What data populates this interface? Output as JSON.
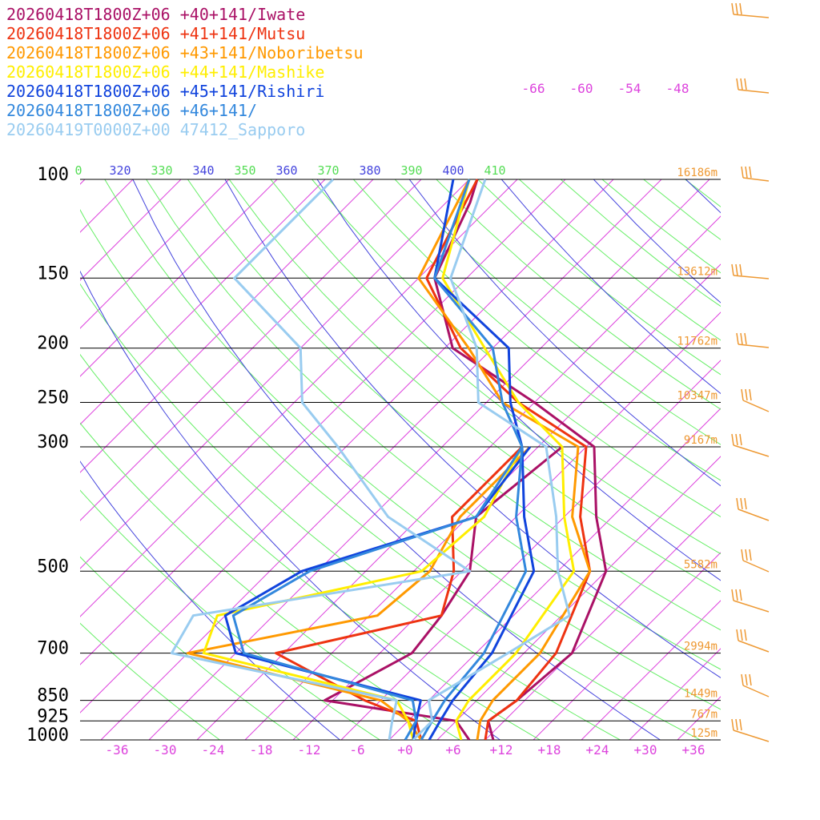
{
  "chart_data": {
    "type": "line",
    "title": "",
    "xlabel": "",
    "ylabel": "",
    "x_ticks": [
      "-36",
      "-30",
      "-24",
      "-18",
      "-12",
      "-6",
      "+0",
      "+6",
      "+12",
      "+18",
      "+24",
      "+30",
      "+36"
    ],
    "pressure_levels": [
      100,
      150,
      200,
      250,
      300,
      500,
      700,
      850,
      925,
      1000
    ],
    "height_labels": [
      {
        "p": 100,
        "label": "16186m"
      },
      {
        "p": 150,
        "label": "13612m"
      },
      {
        "p": 200,
        "label": "11762m"
      },
      {
        "p": 250,
        "label": "10347m"
      },
      {
        "p": 300,
        "label": "9167m"
      },
      {
        "p": 500,
        "label": "5582m"
      },
      {
        "p": 700,
        "label": "2994m"
      },
      {
        "p": 850,
        "label": "1449m"
      },
      {
        "p": 925,
        "label": "767m"
      },
      {
        "p": 1000,
        "label": "125m"
      }
    ],
    "theta_labels": [
      "0",
      "320",
      "330",
      "340",
      "350",
      "360",
      "370",
      "380",
      "390",
      "400",
      "410"
    ],
    "upper_temp_labels": [
      "-66",
      "-60",
      "-54",
      "-48"
    ],
    "series": [
      {
        "name": "20260418T1800Z+06 +40+141/Iwate",
        "color": "#aa1166",
        "temperature": [
          [
            1000,
            11
          ],
          [
            925,
            8
          ],
          [
            850,
            9
          ],
          [
            700,
            10
          ],
          [
            500,
            4
          ],
          [
            400,
            -4
          ],
          [
            300,
            -13
          ],
          [
            250,
            -26
          ],
          [
            200,
            -43
          ],
          [
            150,
            -54
          ],
          [
            110,
            -59
          ],
          [
            100,
            -61
          ]
        ],
        "dewpoint": [
          [
            1000,
            8
          ],
          [
            925,
            4
          ],
          [
            850,
            -15
          ],
          [
            700,
            -10
          ],
          [
            600,
            -11
          ],
          [
            500,
            -13
          ],
          [
            400,
            -19
          ],
          [
            300,
            -17
          ]
        ]
      },
      {
        "name": "20260418T1800Z+06 +41+141/Mutsu",
        "color": "#ee3311",
        "temperature": [
          [
            1000,
            10
          ],
          [
            925,
            8
          ],
          [
            850,
            9
          ],
          [
            700,
            8
          ],
          [
            500,
            2
          ],
          [
            400,
            -6
          ],
          [
            300,
            -14
          ],
          [
            250,
            -28
          ],
          [
            200,
            -42
          ],
          [
            150,
            -55
          ],
          [
            100,
            -61
          ]
        ],
        "dewpoint": [
          [
            1000,
            2
          ],
          [
            925,
            -1
          ],
          [
            850,
            -10
          ],
          [
            700,
            -27
          ],
          [
            600,
            -11
          ],
          [
            500,
            -15
          ],
          [
            400,
            -22
          ],
          [
            300,
            -22
          ]
        ]
      },
      {
        "name": "20260418T1800Z+06 +43+141/Noboribetsu",
        "color": "#ff9900",
        "temperature": [
          [
            1000,
            9
          ],
          [
            925,
            7
          ],
          [
            850,
            6
          ],
          [
            700,
            6
          ],
          [
            500,
            2
          ],
          [
            400,
            -7
          ],
          [
            300,
            -15
          ],
          [
            250,
            -30
          ],
          [
            200,
            -41
          ],
          [
            150,
            -56
          ],
          [
            100,
            -62
          ]
        ],
        "dewpoint": [
          [
            1000,
            2
          ],
          [
            925,
            -2
          ],
          [
            850,
            -8
          ],
          [
            700,
            -38
          ],
          [
            600,
            -19
          ],
          [
            500,
            -18
          ],
          [
            400,
            -21
          ],
          [
            300,
            -21
          ]
        ]
      },
      {
        "name": "20260418T1800Z+06 +44+141/Mashike",
        "color": "#ffee00",
        "temperature": [
          [
            1000,
            7
          ],
          [
            925,
            4
          ],
          [
            850,
            3
          ],
          [
            700,
            3
          ],
          [
            500,
            0
          ],
          [
            400,
            -8
          ],
          [
            300,
            -17
          ],
          [
            250,
            -28
          ],
          [
            200,
            -39
          ],
          [
            150,
            -53
          ],
          [
            100,
            -62
          ]
        ],
        "dewpoint": [
          [
            1000,
            1
          ],
          [
            925,
            -2
          ],
          [
            850,
            -6
          ],
          [
            700,
            -36
          ],
          [
            600,
            -39
          ],
          [
            500,
            -19
          ],
          [
            400,
            -18
          ],
          [
            300,
            -22
          ]
        ]
      },
      {
        "name": "20260418T1800Z+06 +45+141/Rishiri",
        "color": "#1144dd",
        "temperature": [
          [
            1000,
            3
          ],
          [
            925,
            2
          ],
          [
            850,
            1
          ],
          [
            700,
            0
          ],
          [
            500,
            -5
          ],
          [
            400,
            -13
          ],
          [
            300,
            -22
          ],
          [
            250,
            -29
          ],
          [
            200,
            -36
          ],
          [
            150,
            -54
          ],
          [
            100,
            -64
          ]
        ],
        "dewpoint": [
          [
            1000,
            1
          ],
          [
            925,
            -1
          ],
          [
            850,
            -3
          ],
          [
            700,
            -32
          ],
          [
            600,
            -38
          ],
          [
            500,
            -34
          ],
          [
            400,
            -19
          ],
          [
            300,
            -21
          ]
        ]
      },
      {
        "name": "20260418T1800Z+06 +46+141/",
        "color": "#3388dd",
        "temperature": [
          [
            1000,
            2
          ],
          [
            925,
            1
          ],
          [
            850,
            0
          ],
          [
            700,
            -1
          ],
          [
            500,
            -6
          ],
          [
            400,
            -14
          ],
          [
            300,
            -22
          ],
          [
            250,
            -30
          ],
          [
            200,
            -38
          ],
          [
            150,
            -54
          ],
          [
            100,
            -62
          ]
        ],
        "dewpoint": [
          [
            1000,
            0
          ],
          [
            925,
            -1
          ],
          [
            850,
            -4
          ],
          [
            700,
            -31
          ],
          [
            600,
            -37
          ],
          [
            500,
            -33
          ],
          [
            400,
            -19
          ],
          [
            300,
            -22
          ]
        ]
      },
      {
        "name": "20260419T0000Z+00 47412_Sapporo",
        "color": "#99ccf0",
        "temperature": [
          [
            1000,
            1
          ],
          [
            925,
            1
          ],
          [
            850,
            -2
          ],
          [
            700,
            2
          ],
          [
            600,
            5
          ],
          [
            500,
            -2
          ],
          [
            400,
            -9
          ],
          [
            300,
            -19
          ],
          [
            250,
            -33
          ],
          [
            200,
            -40
          ],
          [
            150,
            -52
          ],
          [
            100,
            -60
          ]
        ],
        "dewpoint": [
          [
            1000,
            -2
          ],
          [
            925,
            -4
          ],
          [
            850,
            -6
          ],
          [
            700,
            -40
          ],
          [
            600,
            -42
          ],
          [
            500,
            -13
          ],
          [
            400,
            -30
          ],
          [
            300,
            -45
          ],
          [
            250,
            -55
          ],
          [
            200,
            -62
          ],
          [
            150,
            -79
          ],
          [
            100,
            -79
          ]
        ]
      }
    ]
  },
  "colors": {
    "isobar": "#000000",
    "isotherm": "#dd44dd",
    "dry_adiabat": "#66ee66",
    "theta_e": "#4444dd",
    "height_label": "#ee9933",
    "wind_barb": "#ee9933"
  }
}
